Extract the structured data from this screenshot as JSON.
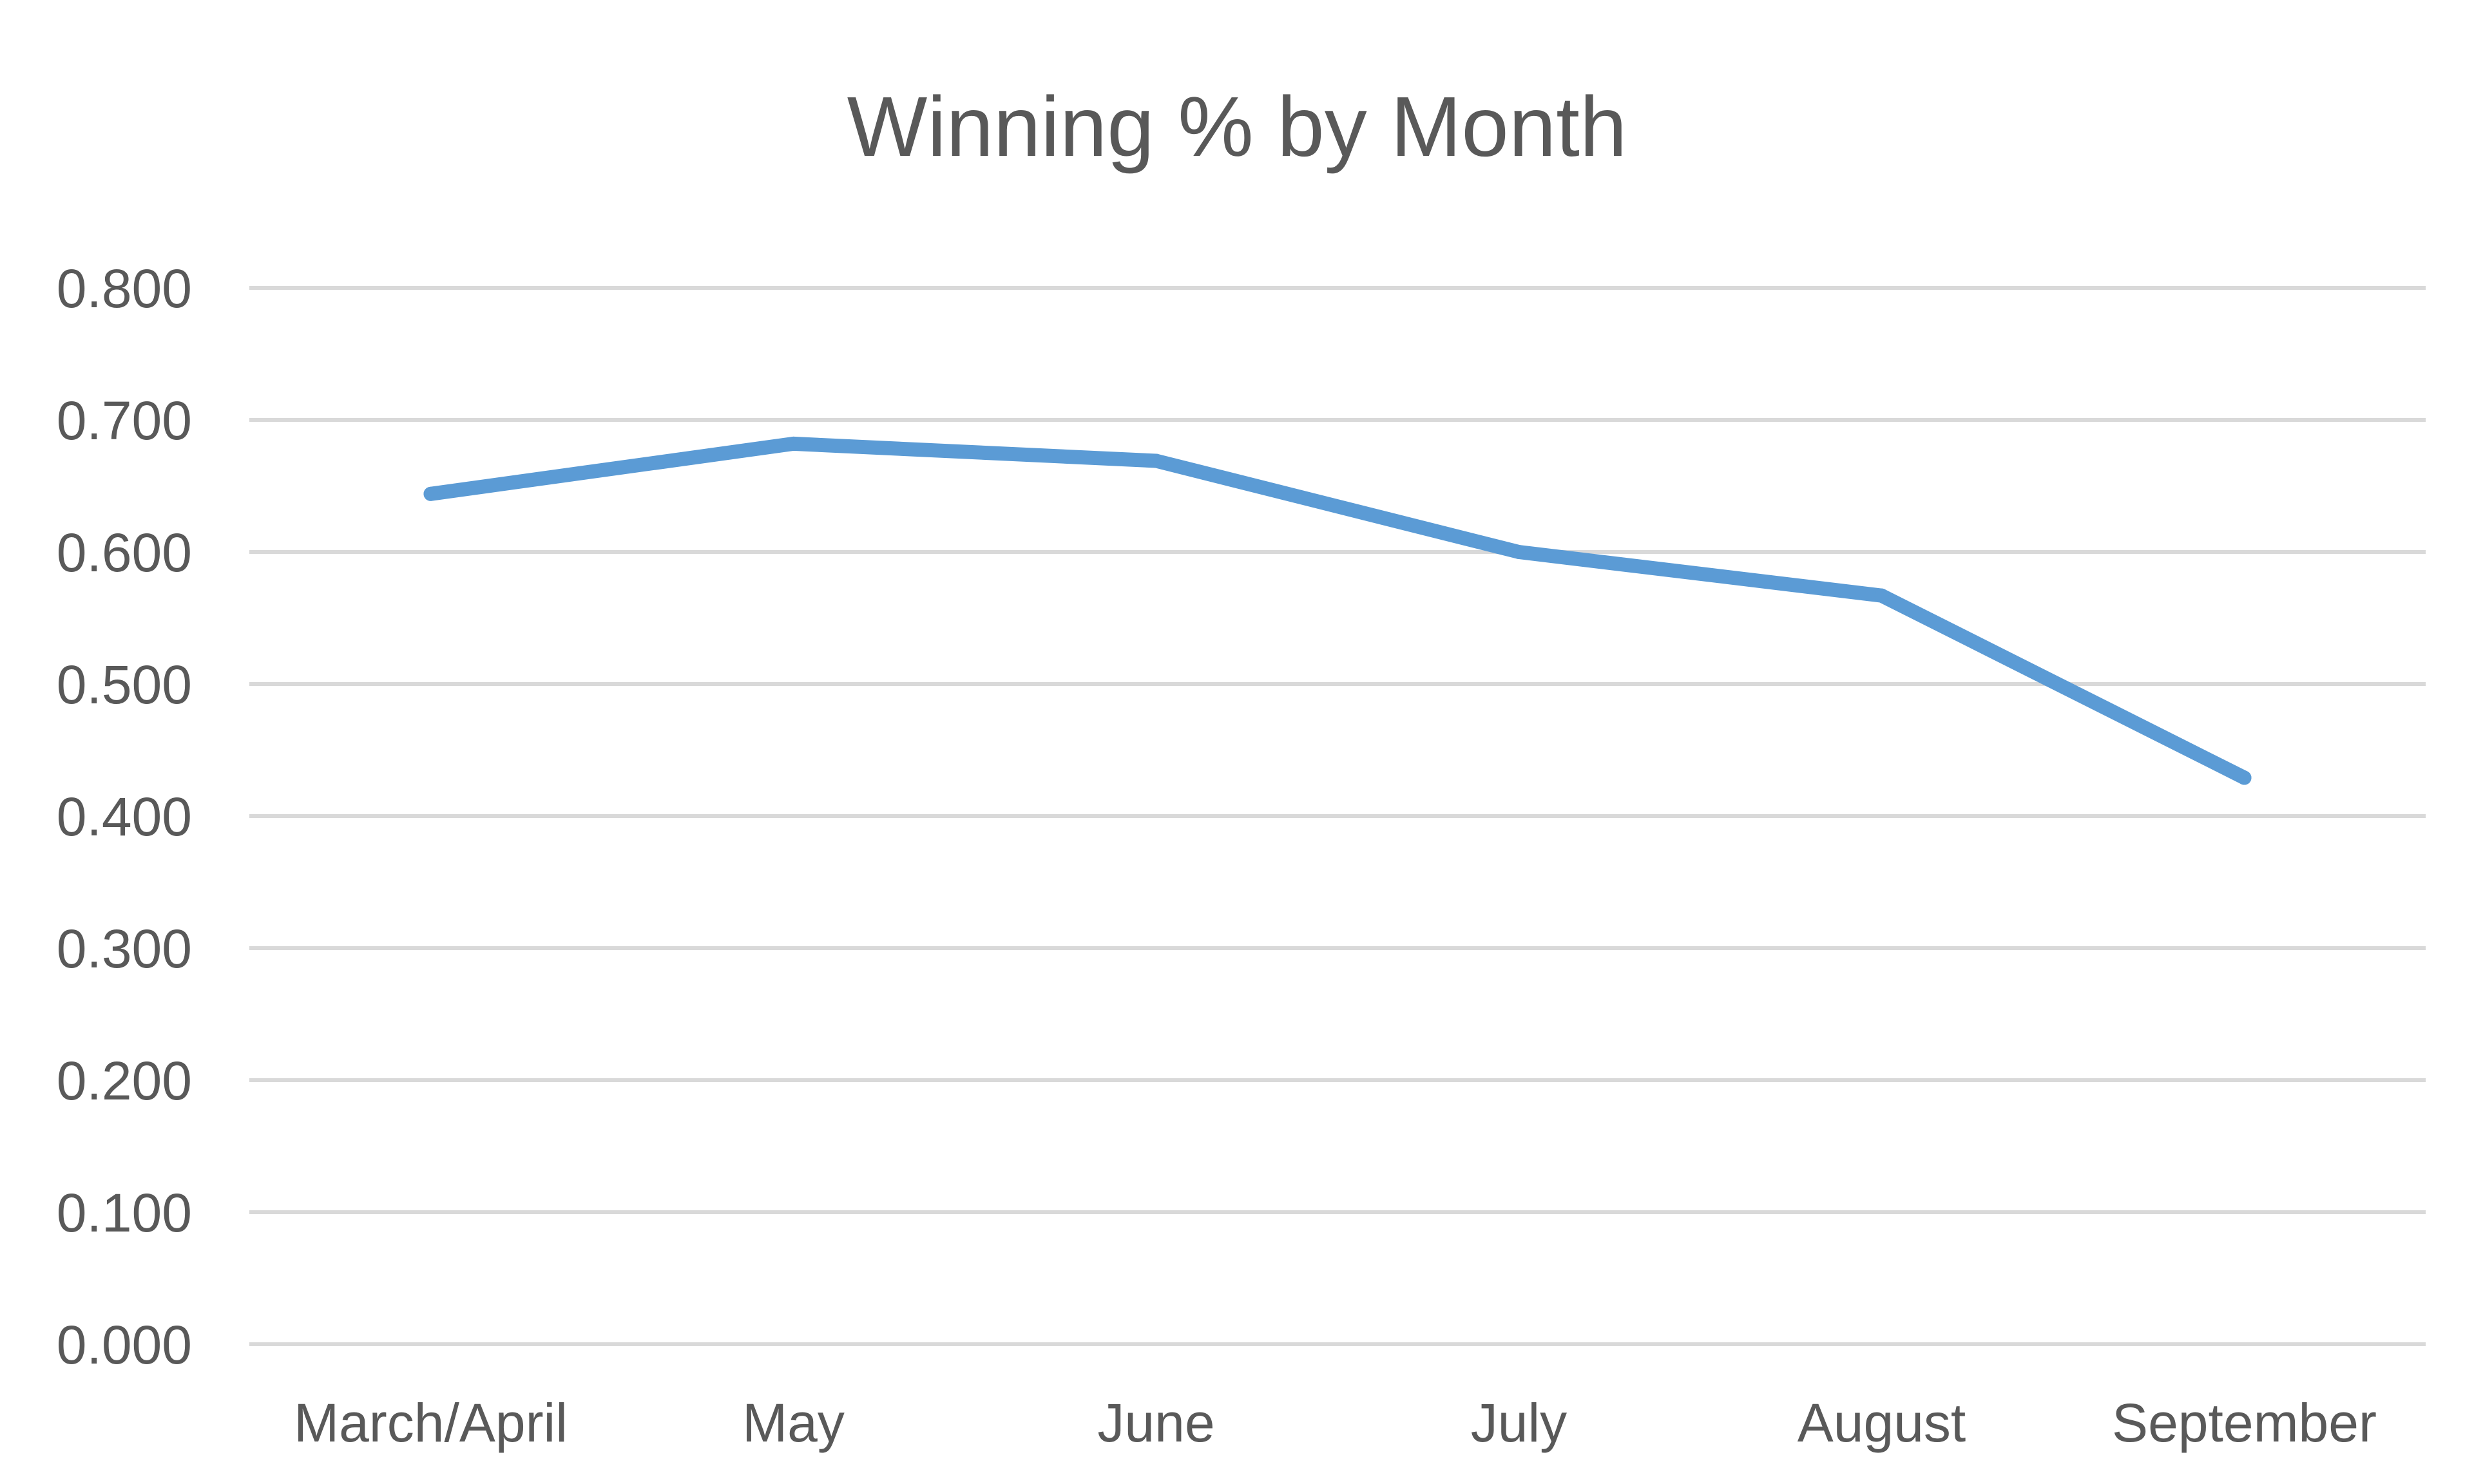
{
  "chart_data": {
    "type": "line",
    "title": "Winning % by Month",
    "xlabel": "",
    "ylabel": "",
    "categories": [
      "March/April",
      "May",
      "June",
      "July",
      "August",
      "September"
    ],
    "series": [
      {
        "values": [
          0.644,
          0.682,
          0.669,
          0.6,
          0.567,
          0.429
        ],
        "color": "#5b9bd5"
      }
    ],
    "ylim": [
      0,
      0.8
    ],
    "yticks": [
      "0.000",
      "0.100",
      "0.200",
      "0.300",
      "0.400",
      "0.500",
      "0.600",
      "0.700",
      "0.800"
    ],
    "grid": true,
    "legend": "none",
    "colors": {
      "text": "#595959",
      "grid": "#d9d9d9",
      "background": "#ffffff"
    }
  }
}
